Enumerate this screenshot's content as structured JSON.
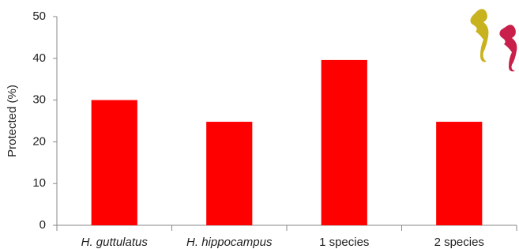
{
  "chart_data": {
    "type": "bar",
    "y_label": "Protected (%)",
    "categories": [
      "H. guttulatus",
      "H. hippocampus",
      "1 species",
      "2 species"
    ],
    "values": [
      30,
      24.8,
      39.6,
      24.8
    ],
    "color": "#ff0000",
    "ylim": [
      0,
      50
    ],
    "yticks": [
      0,
      10,
      20,
      30,
      40,
      50
    ],
    "grid": false
  }
}
